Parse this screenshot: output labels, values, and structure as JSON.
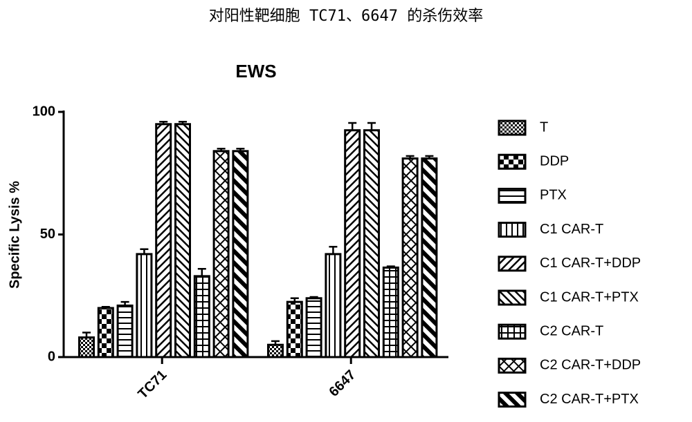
{
  "header": {
    "title": "对阳性靶细胞 TC71、6647 的杀伤效率"
  },
  "chart_data": {
    "type": "bar",
    "title": "EWS",
    "y_label": "Specific Lysis %",
    "categories": [
      "TC71",
      "6647"
    ],
    "ylim": [
      0,
      100
    ],
    "yticks": [
      0,
      50,
      100
    ],
    "series": [
      {
        "name": "T",
        "color": "#000000",
        "values": [
          8,
          5
        ],
        "errors": [
          2,
          1.5
        ]
      },
      {
        "name": "DDP",
        "color": "#000000",
        "values": [
          20,
          22.5
        ],
        "errors": [
          0.5,
          1.5
        ]
      },
      {
        "name": "PTX",
        "color": "#000000",
        "values": [
          21,
          24
        ],
        "errors": [
          1.5,
          0.5
        ]
      },
      {
        "name": "C1 CAR-T",
        "color": "#000000",
        "values": [
          42,
          42
        ],
        "errors": [
          2,
          3
        ]
      },
      {
        "name": "C1 CAR-T+DDP",
        "color": "#000000",
        "values": [
          95,
          92.5
        ],
        "errors": [
          1,
          3
        ]
      },
      {
        "name": "C1 CAR-T+PTX",
        "color": "#000000",
        "values": [
          95,
          92.5
        ],
        "errors": [
          1,
          3
        ]
      },
      {
        "name": "C2 CAR-T",
        "color": "#000000",
        "values": [
          33,
          36.5
        ],
        "errors": [
          3,
          0.5
        ]
      },
      {
        "name": "C2 CAR-T+DDP",
        "color": "#000000",
        "values": [
          84,
          81
        ],
        "errors": [
          1,
          1
        ]
      },
      {
        "name": "C2 CAR-T+PTX",
        "color": "#000000",
        "values": [
          84,
          81
        ],
        "errors": [
          1,
          1
        ]
      }
    ]
  }
}
